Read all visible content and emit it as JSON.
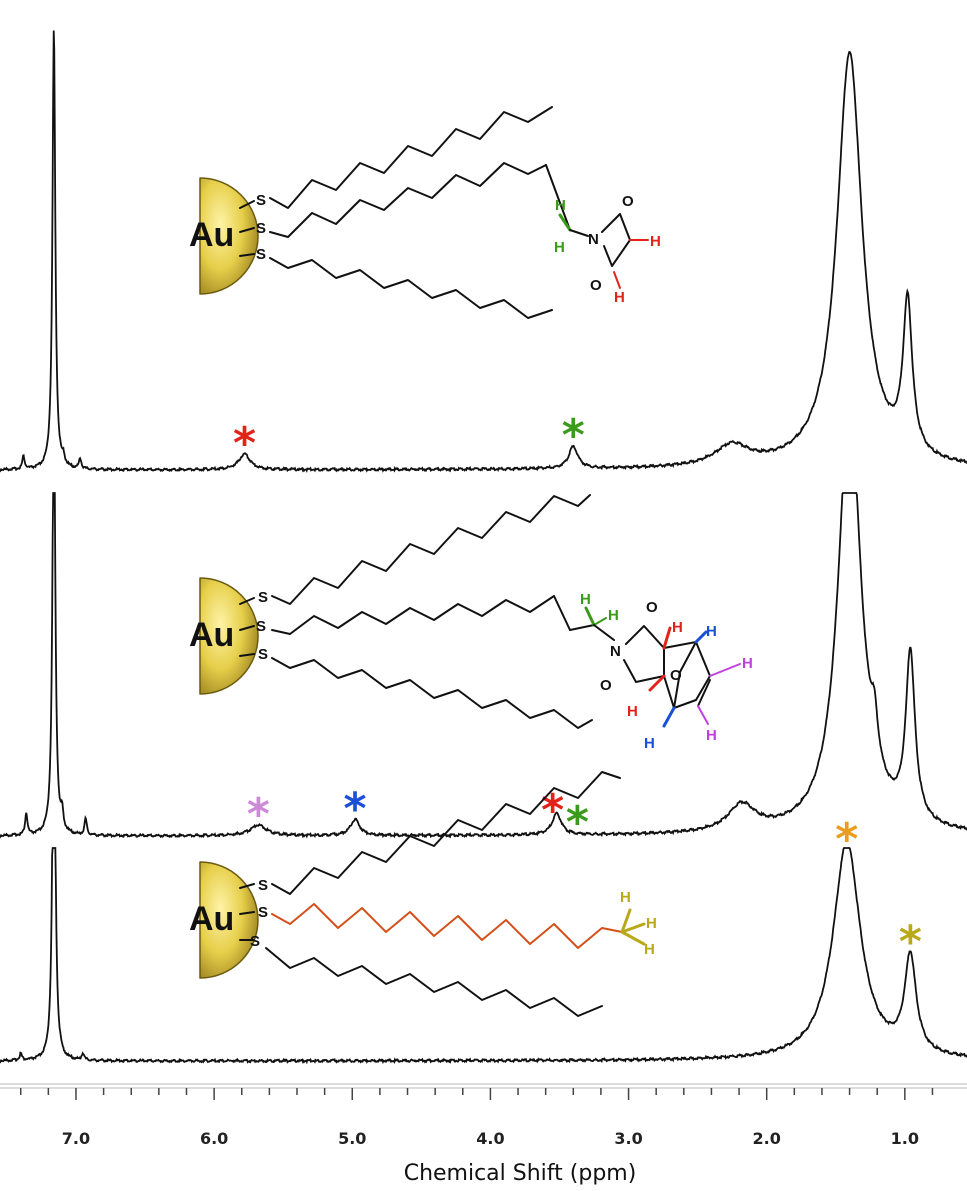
{
  "chart_data": {
    "type": "line",
    "xlabel": "Chemical Shift (ppm)",
    "xlim": [
      7.55,
      0.55
    ],
    "x_reversed": true,
    "x_tick_labels": [
      "7.0",
      "6.0",
      "5.0",
      "4.0",
      "3.0",
      "2.0",
      "1.0"
    ],
    "x_ticks": [
      7.0,
      6.0,
      5.0,
      4.0,
      3.0,
      2.0,
      1.0
    ],
    "au_label": "Au",
    "atom_labels": {
      "S": "S",
      "H": "H",
      "N": "N",
      "O": "O"
    },
    "colors": {
      "red": "#e2231a",
      "green": "#3a9a1a",
      "blue": "#1a4fd6",
      "pink": "#cc8ad8",
      "magenta": "#c040e0",
      "orange": "#f09a1a",
      "olive": "#b8a81a",
      "chain_orange": "#d4501a",
      "gold": "#e6cf4a"
    },
    "series": [
      {
        "panel": "top",
        "peaks": [
          {
            "x": 7.16,
            "h": 1.7,
            "w": 0.012
          },
          {
            "x": 7.38,
            "h": 0.05,
            "w": 0.01
          },
          {
            "x": 7.09,
            "h": 0.03,
            "w": 0.01
          },
          {
            "x": 6.97,
            "h": 0.04,
            "w": 0.01
          },
          {
            "x": 5.78,
            "h": 0.06,
            "w": 0.05
          },
          {
            "x": 3.4,
            "h": 0.085,
            "w": 0.04
          },
          {
            "x": 2.25,
            "h": 0.08,
            "w": 0.15
          },
          {
            "x": 1.4,
            "h": 1.6,
            "w": 0.11
          },
          {
            "x": 0.98,
            "h": 0.58,
            "w": 0.04
          }
        ],
        "markers": [
          {
            "x": 5.78,
            "color": "red"
          },
          {
            "x": 3.4,
            "color": "green"
          }
        ]
      },
      {
        "panel": "middle",
        "peaks": [
          {
            "x": 7.16,
            "h": 1.7,
            "w": 0.012
          },
          {
            "x": 7.36,
            "h": 0.08,
            "w": 0.01
          },
          {
            "x": 7.1,
            "h": 0.06,
            "w": 0.01
          },
          {
            "x": 6.93,
            "h": 0.06,
            "w": 0.01
          },
          {
            "x": 5.68,
            "h": 0.04,
            "w": 0.07
          },
          {
            "x": 4.98,
            "h": 0.06,
            "w": 0.04
          },
          {
            "x": 3.52,
            "h": 0.08,
            "w": 0.04
          },
          {
            "x": 2.18,
            "h": 0.1,
            "w": 0.12
          },
          {
            "x": 1.4,
            "h": 1.6,
            "w": 0.1
          },
          {
            "x": 1.22,
            "h": 0.15,
            "w": 0.03
          },
          {
            "x": 0.96,
            "h": 0.62,
            "w": 0.04
          }
        ],
        "markers": [
          {
            "x": 5.68,
            "color": "pink"
          },
          {
            "x": 4.98,
            "color": "blue"
          },
          {
            "x": 3.55,
            "color": "red"
          },
          {
            "x": 3.37,
            "color": "green"
          }
        ]
      },
      {
        "panel": "bottom",
        "peaks": [
          {
            "x": 7.16,
            "h": 1.9,
            "w": 0.012
          },
          {
            "x": 7.4,
            "h": 0.03,
            "w": 0.01
          },
          {
            "x": 6.95,
            "h": 0.03,
            "w": 0.01
          },
          {
            "x": 1.42,
            "h": 0.95,
            "w": 0.12
          },
          {
            "x": 0.96,
            "h": 0.42,
            "w": 0.05
          }
        ],
        "markers": [
          {
            "x": 1.42,
            "color": "orange"
          },
          {
            "x": 0.96,
            "color": "olive"
          }
        ]
      }
    ]
  }
}
